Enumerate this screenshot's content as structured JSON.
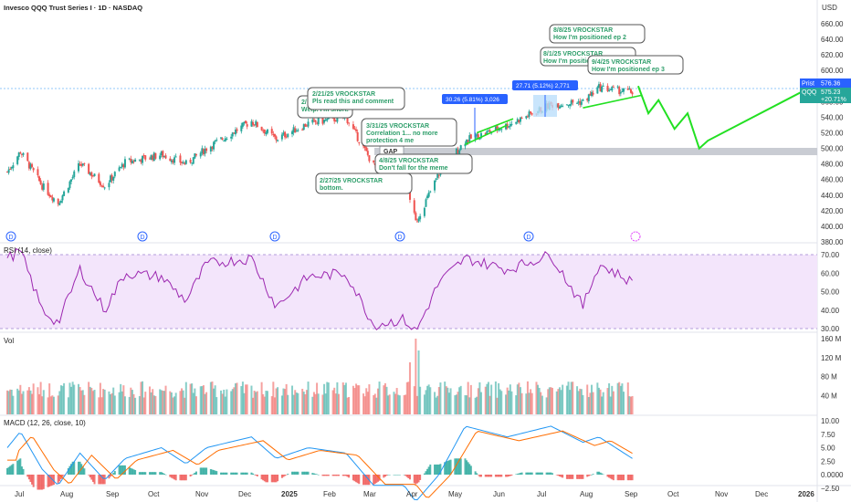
{
  "header": {
    "title": "Invesco QQQ Trust Series I · 1D · NASDAQ",
    "currency": "USD"
  },
  "colors": {
    "up": "#26a69a",
    "down": "#ef5350",
    "forecast": "#22e022",
    "trend": "#22e022",
    "rsi": "#9c27b0",
    "macd": "#2196f3",
    "signal": "#ff6d00",
    "note_text": "#2e9e6a",
    "badge": "#2962ff"
  },
  "price_axis": {
    "ticks": [
      "660.00",
      "640.00",
      "620.00",
      "600.00",
      "580.00",
      "560.00",
      "540.00",
      "520.00",
      "500.00",
      "480.00",
      "460.00",
      "440.00",
      "420.00",
      "400.00",
      "380.00"
    ]
  },
  "price_tags": {
    "label": "Prist",
    "value": "576.36",
    "symbol": "QQQ",
    "value2": "575.23",
    "change": "+20.71%"
  },
  "rsi_axis": {
    "ticks": [
      "70.00",
      "60.00",
      "50.00",
      "40.00",
      "30.00"
    ]
  },
  "vol_axis": {
    "ticks": [
      "160 M",
      "120 M",
      "80 M",
      "40 M"
    ]
  },
  "macd_axis": {
    "ticks": [
      "10.00",
      "7.50",
      "5.00",
      "2.50",
      "0.0000",
      "−2.50"
    ]
  },
  "time_axis": {
    "labels": [
      "Jul",
      "Aug",
      "Sep",
      "Oct",
      "Nov",
      "Dec",
      "2025",
      "Feb",
      "Mar",
      "Apr",
      "May",
      "Jun",
      "Jul",
      "Aug",
      "Sep",
      "Oct",
      "Nov",
      "Dec",
      "2026"
    ]
  },
  "panes": {
    "rsi": "RSI (14, close)",
    "vol": "Vol",
    "macd": "MACD (12, 26, close, 10)"
  },
  "gap_label": "GAP",
  "measures": [
    {
      "text": "30.26 (5.81%) 3,026"
    },
    {
      "text": "27.71 (5.12%) 2,771"
    }
  ],
  "notes": [
    {
      "title": "2/21/25 VROCKSTAR",
      "body": "Pls read this and comment"
    },
    {
      "title": "2/",
      "body": "Welp. I'm short."
    },
    {
      "title": "3/31/25 VROCKSTAR",
      "body": "Correlation 1... no more",
      "body2": "protection 4 me"
    },
    {
      "title": "4/8/25 VROCKSTAR",
      "body": "Don't fall for the meme"
    },
    {
      "title": "2/27/25 VROCKSTAR",
      "body": "bottom."
    },
    {
      "title": "8/8/25 VROCKSTAR",
      "body": "How I'm positioned ep 2"
    },
    {
      "title": "8/1/25 VROCKSTAR",
      "body": "How I'm positio"
    },
    {
      "title": "9/4/25 VROCKSTAR",
      "body": "How I'm positioned ep 3"
    }
  ],
  "chart_data": {
    "type": "candlestick",
    "title": "Invesco QQQ Trust Series I · 1D · NASDAQ",
    "price_range": [
      380,
      660
    ],
    "price_path": [
      [
        "2024-07-01",
        470
      ],
      [
        "2024-07-10",
        496
      ],
      [
        "2024-07-25",
        452
      ],
      [
        "2024-08-05",
        430
      ],
      [
        "2024-08-20",
        480
      ],
      [
        "2024-09-06",
        452
      ],
      [
        "2024-09-20",
        482
      ],
      [
        "2024-10-15",
        492
      ],
      [
        "2024-11-01",
        480
      ],
      [
        "2024-11-15",
        500
      ],
      [
        "2024-12-16",
        535
      ],
      [
        "2025-01-02",
        512
      ],
      [
        "2025-01-24",
        532
      ],
      [
        "2025-02-19",
        540
      ],
      [
        "2025-03-10",
        478
      ],
      [
        "2025-03-31",
        468
      ],
      [
        "2025-04-08",
        405
      ],
      [
        "2025-04-24",
        468
      ],
      [
        "2025-05-12",
        510
      ],
      [
        "2025-06-10",
        530
      ],
      [
        "2025-07-10",
        556
      ],
      [
        "2025-08-01",
        560
      ],
      [
        "2025-08-12",
        578
      ],
      [
        "2025-09-04",
        572
      ]
    ],
    "forecast_path": [
      [
        "2025-09-08",
        580
      ],
      [
        "2025-09-15",
        545
      ],
      [
        "2025-09-22",
        562
      ],
      [
        "2025-10-03",
        525
      ],
      [
        "2025-10-12",
        545
      ],
      [
        "2025-10-20",
        500
      ],
      [
        "2025-10-26",
        510
      ],
      [
        "2026-01-01",
        575
      ]
    ],
    "trendline": [
      [
        "2025-08-01",
        552
      ],
      [
        "2025-09-10",
        568
      ]
    ],
    "gap_zone": [
      492,
      502
    ],
    "rsi_range": [
      28,
      75
    ],
    "rsi_band": [
      30,
      70
    ],
    "rsi_path": [
      [
        "2024-07-01",
        68
      ],
      [
        "2024-07-10",
        72
      ],
      [
        "2024-07-25",
        40
      ],
      [
        "2024-08-05",
        33
      ],
      [
        "2024-08-20",
        62
      ],
      [
        "2024-09-06",
        40
      ],
      [
        "2024-09-20",
        60
      ],
      [
        "2024-10-15",
        58
      ],
      [
        "2024-11-01",
        45
      ],
      [
        "2024-11-15",
        65
      ],
      [
        "2024-12-16",
        68
      ],
      [
        "2025-01-02",
        42
      ],
      [
        "2025-01-24",
        58
      ],
      [
        "2025-02-19",
        60
      ],
      [
        "2025-03-10",
        32
      ],
      [
        "2025-03-31",
        35
      ],
      [
        "2025-04-08",
        28
      ],
      [
        "2025-04-24",
        55
      ],
      [
        "2025-05-12",
        68
      ],
      [
        "2025-06-10",
        62
      ],
      [
        "2025-07-10",
        70
      ],
      [
        "2025-08-01",
        42
      ],
      [
        "2025-08-12",
        65
      ],
      [
        "2025-09-04",
        55
      ]
    ],
    "volume_range": [
      0,
      165
    ],
    "volume_spikes_m": [
      [
        "2025-04-08",
        160
      ],
      [
        "2025-04-04",
        110
      ],
      [
        "2025-04-10",
        135
      ]
    ],
    "macd_range": [
      -2.5,
      10
    ],
    "macd_path": [
      [
        "2024-07-01",
        5
      ],
      [
        "2024-07-10",
        8
      ],
      [
        "2024-07-25",
        1
      ],
      [
        "2024-08-05",
        -2
      ],
      [
        "2024-08-20",
        4
      ],
      [
        "2024-09-06",
        -1
      ],
      [
        "2024-09-20",
        3
      ],
      [
        "2024-10-15",
        5
      ],
      [
        "2024-11-01",
        2
      ],
      [
        "2024-11-15",
        5
      ],
      [
        "2024-12-16",
        7
      ],
      [
        "2025-01-02",
        3
      ],
      [
        "2025-01-24",
        5
      ],
      [
        "2025-02-19",
        4
      ],
      [
        "2025-03-10",
        -2
      ],
      [
        "2025-03-31",
        -2
      ],
      [
        "2025-04-08",
        -5
      ],
      [
        "2025-04-24",
        0
      ],
      [
        "2025-05-12",
        9
      ],
      [
        "2025-06-10",
        7
      ],
      [
        "2025-07-10",
        9
      ],
      [
        "2025-08-01",
        6
      ],
      [
        "2025-08-12",
        7
      ],
      [
        "2025-09-04",
        3
      ]
    ]
  }
}
